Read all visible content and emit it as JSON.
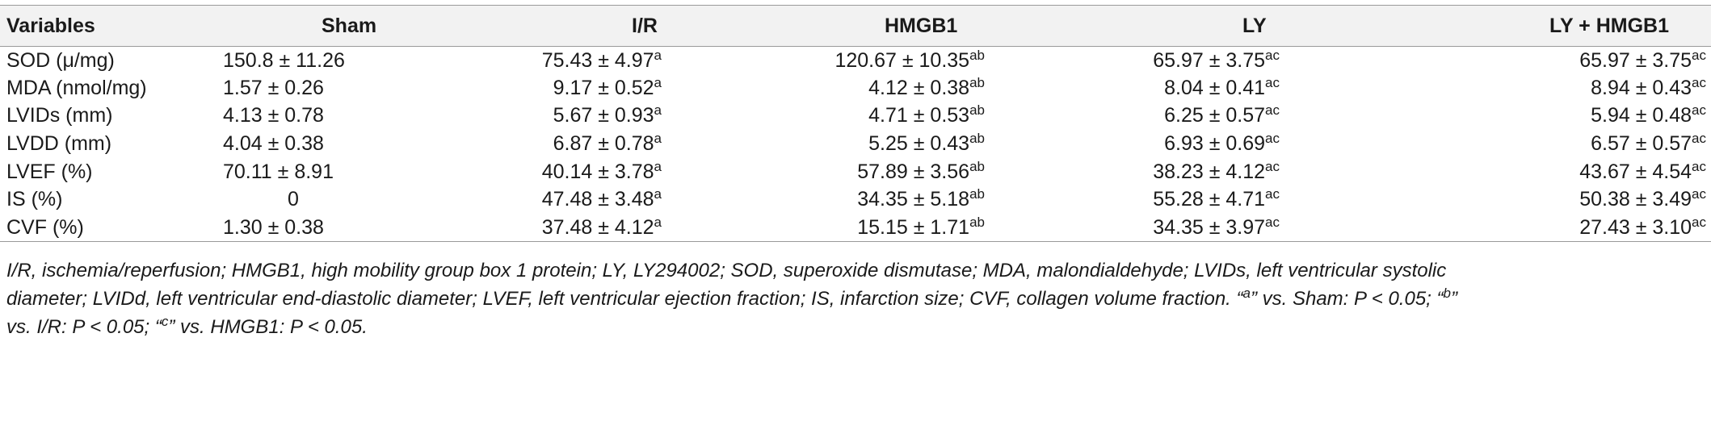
{
  "table": {
    "headers": [
      "Variables",
      "Sham",
      "I/R",
      "HMGB1",
      "LY",
      "LY + HMGB1"
    ],
    "rows": [
      {
        "variable": "SOD (μ/mg)",
        "sham": "150.8 ± 11.26",
        "ir": "75.43 ± 4.97",
        "ir_sup": "a",
        "hmgb1": "120.67 ± 10.35",
        "hmgb1_sup": "ab",
        "ly": "65.97 ± 3.75",
        "ly_sup": "ac",
        "lyhmgb1": "65.97 ± 3.75",
        "lyhmgb1_sup": "ac"
      },
      {
        "variable": "MDA (nmol/mg)",
        "sham": "1.57 ± 0.26",
        "ir": "9.17 ± 0.52",
        "ir_sup": "a",
        "hmgb1": "4.12 ± 0.38",
        "hmgb1_sup": "ab",
        "ly": "8.04 ± 0.41",
        "ly_sup": "ac",
        "lyhmgb1": "8.94 ± 0.43",
        "lyhmgb1_sup": "ac"
      },
      {
        "variable": "LVIDs (mm)",
        "sham": "4.13 ± 0.78",
        "ir": "5.67 ± 0.93",
        "ir_sup": "a",
        "hmgb1": "4.71 ± 0.53",
        "hmgb1_sup": "ab",
        "ly": "6.25 ± 0.57",
        "ly_sup": "ac",
        "lyhmgb1": "5.94 ± 0.48",
        "lyhmgb1_sup": "ac"
      },
      {
        "variable": "LVDD (mm)",
        "sham": "4.04 ± 0.38",
        "ir": "6.87 ± 0.78",
        "ir_sup": "a",
        "hmgb1": "5.25 ± 0.43",
        "hmgb1_sup": "ab",
        "ly": "6.93 ± 0.69",
        "ly_sup": "ac",
        "lyhmgb1": "6.57 ± 0.57",
        "lyhmgb1_sup": "ac"
      },
      {
        "variable": "LVEF (%)",
        "sham": "70.11 ± 8.91",
        "ir": "40.14 ± 3.78",
        "ir_sup": "a",
        "hmgb1": "57.89 ± 3.56",
        "hmgb1_sup": "ab",
        "ly": "38.23 ± 4.12",
        "ly_sup": "ac",
        "lyhmgb1": "43.67 ± 4.54",
        "lyhmgb1_sup": "ac"
      },
      {
        "variable": "IS (%)",
        "sham": "0",
        "ir": "47.48 ± 3.48",
        "ir_sup": "a",
        "hmgb1": "34.35 ± 5.18",
        "hmgb1_sup": "ab",
        "ly": "55.28 ± 4.71",
        "ly_sup": "ac",
        "lyhmgb1": "50.38 ± 3.49",
        "lyhmgb1_sup": "ac"
      },
      {
        "variable": "CVF (%)",
        "sham": "1.30 ± 0.38",
        "ir": "37.48 ± 4.12",
        "ir_sup": "a",
        "hmgb1": "15.15 ± 1.71",
        "hmgb1_sup": "ab",
        "ly": "34.35 ± 3.97",
        "ly_sup": "ac",
        "lyhmgb1": "27.43 ± 3.10",
        "lyhmgb1_sup": "ac"
      }
    ]
  },
  "footnote": {
    "line1": "I/R, ischemia/reperfusion; HMGB1, high mobility group box 1 protein; LY, LY294002; SOD, superoxide dismutase; MDA, malondialdehyde; LVIDs, left ventricular systolic",
    "line2_a": "diameter; LVIDd, left ventricular end-diastolic diameter; LVEF, left ventricular ejection fraction; IS, infarction size; CVF, collagen volume fraction. “",
    "sup_a": "a",
    "line2_b": "” vs. Sham: P < 0.05; “",
    "sup_b": "b",
    "line2_c": "”",
    "line3_a": "vs. I/R: P < 0.05; “",
    "sup_c": "c",
    "line3_b": "” vs. HMGB1: P < 0.05."
  }
}
